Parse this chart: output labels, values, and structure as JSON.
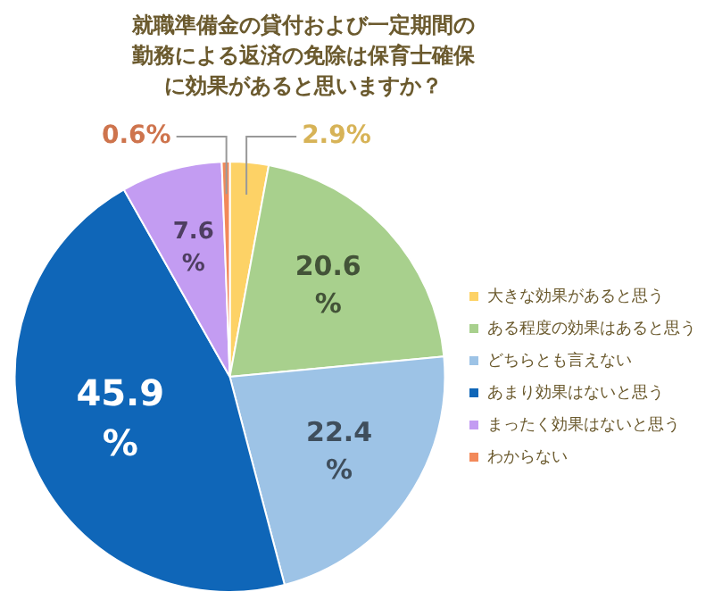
{
  "chart_data": {
    "type": "pie",
    "title": "就職準備金の貸付および一定期間の勤務による返済の免除は保育士確保に効果があると思いますか？",
    "categories": [
      "大きな効果があると思う",
      "ある程度の効果はあると思う",
      "どちらとも言えない",
      "あまり効果はないと思う",
      "まったく効果はないと思う",
      "わからない"
    ],
    "values": [
      2.9,
      20.6,
      22.4,
      45.9,
      7.6,
      0.6
    ],
    "colors": [
      "#fdd266",
      "#a8d08d",
      "#9dc3e6",
      "#0f66b8",
      "#c39cf2",
      "#f2895a"
    ],
    "value_labels": [
      "2.9%",
      "20.6%",
      "22.4%",
      "45.9%",
      "7.6%",
      "0.6%"
    ],
    "legend": "right"
  }
}
